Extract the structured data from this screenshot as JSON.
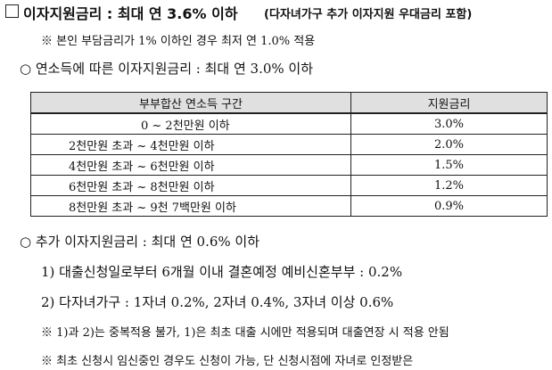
{
  "heading": {
    "main": "이자지원금리 : 최대 연 3.6% 이하",
    "sub": "(다자녀가구 추가 이자지원 우대금리 포함)"
  },
  "note1": "※ 본인 부담금리가 1% 이하인 경우 최저 연 1.0% 적용",
  "section1": "○ 연소득에 따른 이자지원금리 : 최대 연 3.0% 이하",
  "table": {
    "header": [
      "부부합산 연소득 구간",
      "지원금리"
    ],
    "rows": [
      [
        "0 ~ 2천만원 이하",
        "3.0%"
      ],
      [
        "2천만원 초과 ~ 4천만원 이하",
        "2.0%"
      ],
      [
        "4천만원 초과 ~ 6천만원 이하",
        "1.5%"
      ],
      [
        "6천만원 초과 ~ 8천만원 이하",
        "1.2%"
      ],
      [
        "8천만원 초과 ~ 9천 7백만원 이하",
        "0.9%"
      ]
    ]
  },
  "section2": "○ 추가 이자지원금리 : 최대 연 0.6% 이하",
  "items": [
    "1) 대출신청일로부터 6개월 이내 결혼예정 예비신혼부부 : 0.2%",
    "2) 다자녀가구 : 1자녀 0.2%, 2자녀 0.4%, 3자녀 이상 0.6%"
  ],
  "notes": [
    "※ 1)과 2)는 중복적용 불가, 1)은 최초 대출 시에만 적용되며 대출연장 시 적용 안됨",
    "※ 최초 신청시 임신중인 경우도 신청이 가능, 단 신청시점에 자녀로 인정받은"
  ]
}
